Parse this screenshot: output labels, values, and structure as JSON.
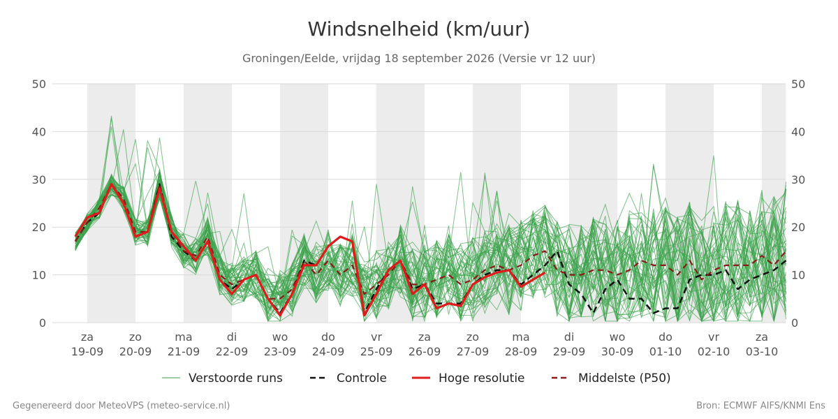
{
  "chart_data": {
    "type": "line",
    "title": "Windsnelheid (km/uur)",
    "subtitle": "Groningen/Eelde, vrijdag 18 september 2026 (Versie vr 12 uur)",
    "ylim": [
      0,
      50
    ],
    "yticks": [
      0,
      10,
      20,
      30,
      40,
      50
    ],
    "grid": true,
    "x_days": [
      {
        "day": "za",
        "date": "19-09"
      },
      {
        "day": "zo",
        "date": "20-09"
      },
      {
        "day": "ma",
        "date": "21-09"
      },
      {
        "day": "di",
        "date": "22-09"
      },
      {
        "day": "wo",
        "date": "23-09"
      },
      {
        "day": "do",
        "date": "24-09"
      },
      {
        "day": "vr",
        "date": "25-09"
      },
      {
        "day": "za",
        "date": "26-09"
      },
      {
        "day": "zo",
        "date": "27-09"
      },
      {
        "day": "ma",
        "date": "28-09"
      },
      {
        "day": "di",
        "date": "29-09"
      },
      {
        "day": "wo",
        "date": "30-09"
      },
      {
        "day": "do",
        "date": "01-10"
      },
      {
        "day": "vr",
        "date": "02-10"
      },
      {
        "day": "za",
        "date": "03-10"
      }
    ],
    "legend": [
      {
        "label": "Verstoorde runs",
        "color": "#3aa14a",
        "style": "thin"
      },
      {
        "label": "Controle",
        "color": "#111111",
        "style": "dashed"
      },
      {
        "label": "Hoge resolutie",
        "color": "#e01b1b",
        "style": "solid"
      },
      {
        "label": "Middelste (P50)",
        "color": "#8b1a1a",
        "style": "dashed"
      }
    ],
    "legend_position": "bottom",
    "series": [
      {
        "name": "Controle",
        "x_days": [
          -0.25,
          -0.0,
          0.25,
          0.5,
          0.75,
          1.0,
          1.25,
          1.5,
          1.75,
          2.0,
          2.25,
          2.5,
          2.75,
          3.0,
          3.25,
          3.5,
          3.75,
          4.0,
          4.25,
          4.5,
          4.75,
          5.0,
          5.25,
          5.5,
          5.75,
          6.0,
          6.25,
          6.5,
          6.75,
          7.0,
          7.25,
          7.5,
          7.75,
          8.0,
          8.25,
          8.5,
          8.75,
          9.0,
          9.25,
          9.5,
          9.75,
          10.0,
          10.25,
          10.5,
          10.75,
          11.0,
          11.25,
          11.5,
          11.75,
          12.0,
          12.25,
          12.5,
          12.75,
          13.0,
          13.25,
          13.5,
          13.75,
          14.0,
          14.25,
          14.5
        ],
        "values": [
          17,
          21,
          23,
          29,
          25,
          18,
          19,
          29,
          18,
          15,
          13,
          17,
          9,
          7,
          9,
          10,
          5,
          2,
          6,
          13,
          12,
          16,
          18,
          17,
          2,
          7,
          11,
          13,
          7,
          8,
          4,
          4,
          4,
          8,
          10,
          11,
          11,
          8,
          10,
          12,
          15,
          8,
          6,
          2,
          7,
          9,
          5,
          5,
          2,
          3,
          3,
          9,
          10,
          10,
          11,
          7,
          9,
          10,
          11,
          13
        ]
      },
      {
        "name": "Hoge resolutie",
        "x_days": [
          -0.25,
          -0.0,
          0.25,
          0.5,
          0.75,
          1.0,
          1.25,
          1.5,
          1.75,
          2.0,
          2.25,
          2.5,
          2.75,
          3.0,
          3.25,
          3.5,
          3.75,
          4.0,
          4.25,
          4.5,
          4.75,
          5.0,
          5.25,
          5.5,
          5.75,
          6.0,
          6.25,
          6.5,
          6.75,
          7.0,
          7.25,
          7.5,
          7.75,
          8.0,
          8.25,
          8.5,
          8.75,
          9.0,
          9.25,
          9.5
        ],
        "values": [
          18,
          22,
          23,
          29,
          25,
          18,
          19,
          28,
          19,
          16,
          13,
          17,
          9,
          6,
          9,
          10,
          5,
          1.5,
          6,
          12,
          12,
          16,
          18,
          17,
          1.5,
          6,
          11,
          13,
          6,
          8,
          3,
          4,
          3.5,
          8,
          9.5,
          10.5,
          11,
          7.5,
          9,
          10.5
        ]
      },
      {
        "name": "Middelste (P50)",
        "x_days": [
          -0.25,
          -0.0,
          0.25,
          0.5,
          0.75,
          1.0,
          1.25,
          1.5,
          1.75,
          2.0,
          2.25,
          2.5,
          2.75,
          3.0,
          3.25,
          3.5,
          3.75,
          4.0,
          4.25,
          4.5,
          4.75,
          5.0,
          5.25,
          5.5,
          5.75,
          6.0,
          6.25,
          6.5,
          6.75,
          7.0,
          7.25,
          7.5,
          7.75,
          8.0,
          8.25,
          8.5,
          8.75,
          9.0,
          9.25,
          9.5,
          9.75,
          10.0,
          10.25,
          10.5,
          10.75,
          11.0,
          11.25,
          11.5,
          11.75,
          12.0,
          12.25,
          12.5,
          12.75,
          13.0,
          13.25,
          13.5,
          13.75,
          14.0,
          14.25,
          14.5
        ],
        "values": [
          17,
          21,
          24,
          29,
          26,
          19,
          19,
          29,
          19,
          15,
          14,
          18,
          10,
          8,
          9,
          10,
          5,
          5,
          7,
          13,
          10,
          13,
          10,
          12,
          6,
          8,
          10,
          13,
          8,
          8,
          9,
          10,
          8,
          9,
          11,
          12,
          11,
          12,
          14,
          15,
          11,
          10,
          10,
          11,
          11,
          10,
          11,
          13,
          12,
          12,
          10,
          13,
          9,
          11,
          12,
          12,
          12,
          14,
          12,
          15
        ]
      }
    ],
    "ensemble": {
      "name": "Verstoorde runs",
      "member_count": 50,
      "x_days_from": -0.25,
      "step_days": 0.25,
      "min_value": 0.3,
      "max_value": 45.7
    }
  },
  "footer": {
    "left": "Gegenereerd door MeteoVPS (meteo-service.nl)",
    "right": "Bron: ECMWF AIFS/KNMI Ens"
  },
  "colors": {
    "band": "#ececec",
    "grid": "#d9d9d9",
    "ensemble": "#3aa14a",
    "control": "#111111",
    "hires": "#e01b1b",
    "median": "#8b1a1a"
  }
}
